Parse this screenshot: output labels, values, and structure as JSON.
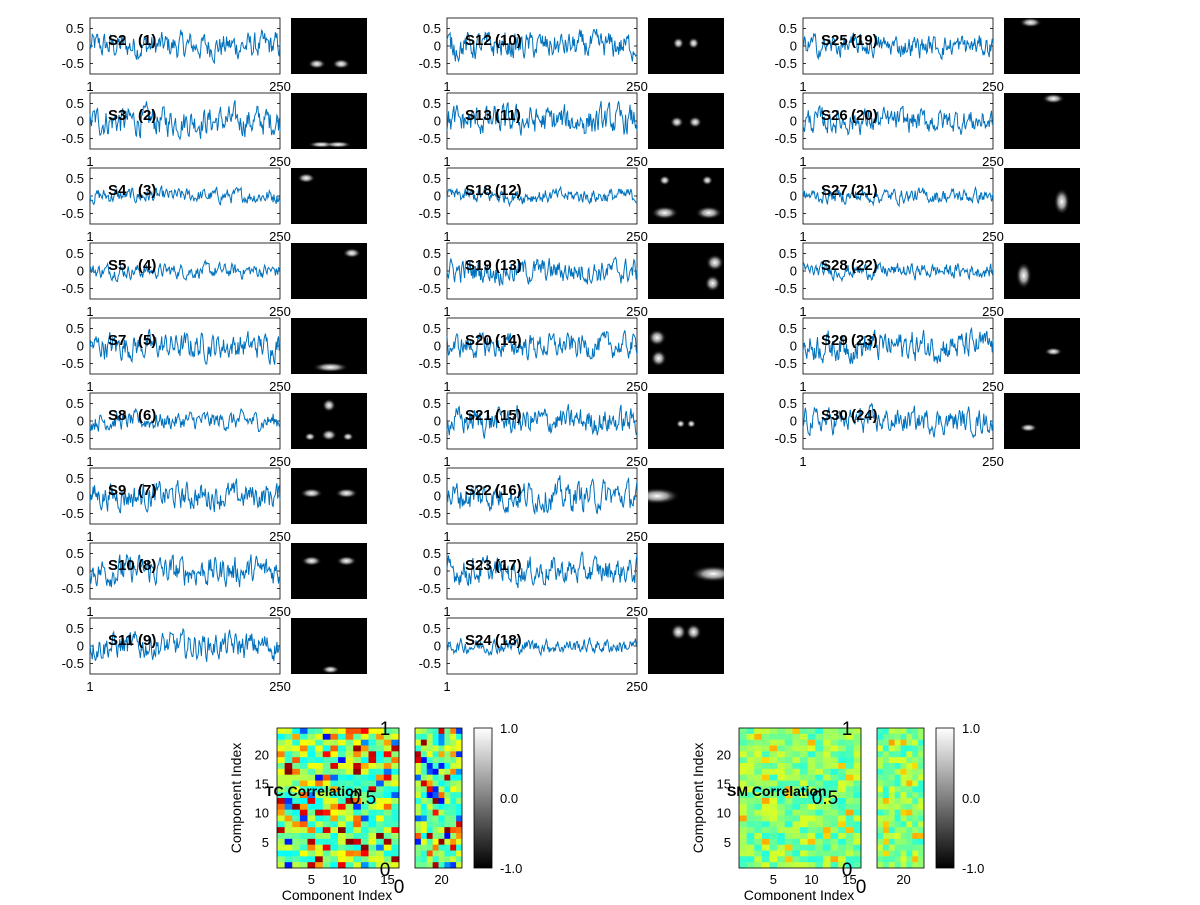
{
  "chart_data": {
    "type": "line",
    "timecourse_panels": {
      "x_range": [
        1,
        250
      ],
      "x_tick_labels": [
        "1",
        "250"
      ],
      "y_tick_labels": [
        "0.5",
        "0",
        "-0.5"
      ],
      "ylim": [
        -0.8,
        0.8
      ],
      "line_color": "#0072bd",
      "spatial_map_colormap": "gray"
    },
    "columns": [
      {
        "label_col": [
          {
            "label": "S2",
            "index": "(1)",
            "amp": 0.22,
            "blobs": [
              {
                "cx": 0.34,
                "cy": 0.82,
                "rx": 0.08,
                "ry": 0.06
              },
              {
                "cx": 0.66,
                "cy": 0.82,
                "rx": 0.08,
                "ry": 0.06
              }
            ]
          },
          {
            "label": "S3",
            "index": "(2)",
            "amp": 0.24,
            "blobs": [
              {
                "cx": 0.4,
                "cy": 0.92,
                "rx": 0.12,
                "ry": 0.04
              },
              {
                "cx": 0.62,
                "cy": 0.92,
                "rx": 0.12,
                "ry": 0.04
              }
            ]
          },
          {
            "label": "S4",
            "index": "(3)",
            "amp": 0.12,
            "blobs": [
              {
                "cx": 0.2,
                "cy": 0.18,
                "rx": 0.08,
                "ry": 0.06
              }
            ]
          },
          {
            "label": "S5",
            "index": "(4)",
            "amp": 0.12,
            "blobs": [
              {
                "cx": 0.8,
                "cy": 0.18,
                "rx": 0.08,
                "ry": 0.06
              }
            ]
          },
          {
            "label": "S7",
            "index": "(5)",
            "amp": 0.22,
            "blobs": [
              {
                "cx": 0.52,
                "cy": 0.88,
                "rx": 0.16,
                "ry": 0.06
              }
            ]
          },
          {
            "label": "S8",
            "index": "(6)",
            "amp": 0.15,
            "blobs": [
              {
                "cx": 0.5,
                "cy": 0.22,
                "rx": 0.06,
                "ry": 0.08
              },
              {
                "cx": 0.25,
                "cy": 0.78,
                "rx": 0.05,
                "ry": 0.05
              },
              {
                "cx": 0.5,
                "cy": 0.75,
                "rx": 0.07,
                "ry": 0.07
              },
              {
                "cx": 0.75,
                "cy": 0.78,
                "rx": 0.05,
                "ry": 0.05
              }
            ]
          },
          {
            "label": "S9",
            "index": "(7)",
            "amp": 0.22,
            "blobs": [
              {
                "cx": 0.27,
                "cy": 0.45,
                "rx": 0.1,
                "ry": 0.06
              },
              {
                "cx": 0.73,
                "cy": 0.45,
                "rx": 0.1,
                "ry": 0.06
              }
            ]
          },
          {
            "label": "S10",
            "index": "(8)",
            "amp": 0.24,
            "blobs": [
              {
                "cx": 0.27,
                "cy": 0.32,
                "rx": 0.09,
                "ry": 0.06
              },
              {
                "cx": 0.73,
                "cy": 0.32,
                "rx": 0.09,
                "ry": 0.06
              }
            ]
          },
          {
            "label": "S11",
            "index": "(9)",
            "amp": 0.22,
            "blobs": [
              {
                "cx": 0.52,
                "cy": 0.92,
                "rx": 0.08,
                "ry": 0.05
              }
            ]
          }
        ]
      },
      {
        "label_col": [
          {
            "label": "S12",
            "index": "(10)",
            "amp": 0.22,
            "blobs": [
              {
                "cx": 0.4,
                "cy": 0.45,
                "rx": 0.05,
                "ry": 0.07
              },
              {
                "cx": 0.6,
                "cy": 0.45,
                "rx": 0.05,
                "ry": 0.07
              }
            ]
          },
          {
            "label": "S13",
            "index": "(11)",
            "amp": 0.24,
            "blobs": [
              {
                "cx": 0.38,
                "cy": 0.52,
                "rx": 0.06,
                "ry": 0.07
              },
              {
                "cx": 0.62,
                "cy": 0.52,
                "rx": 0.06,
                "ry": 0.07
              }
            ]
          },
          {
            "label": "S18",
            "index": "(12)",
            "amp": 0.12,
            "blobs": [
              {
                "cx": 0.22,
                "cy": 0.22,
                "rx": 0.05,
                "ry": 0.06
              },
              {
                "cx": 0.78,
                "cy": 0.22,
                "rx": 0.05,
                "ry": 0.06
              },
              {
                "cx": 0.22,
                "cy": 0.8,
                "rx": 0.12,
                "ry": 0.08
              },
              {
                "cx": 0.8,
                "cy": 0.8,
                "rx": 0.12,
                "ry": 0.08
              }
            ]
          },
          {
            "label": "S19",
            "index": "(13)",
            "amp": 0.2,
            "blobs": [
              {
                "cx": 0.88,
                "cy": 0.35,
                "rx": 0.08,
                "ry": 0.1
              },
              {
                "cx": 0.85,
                "cy": 0.72,
                "rx": 0.07,
                "ry": 0.1
              }
            ]
          },
          {
            "label": "S20",
            "index": "(14)",
            "amp": 0.2,
            "blobs": [
              {
                "cx": 0.12,
                "cy": 0.35,
                "rx": 0.08,
                "ry": 0.1
              },
              {
                "cx": 0.14,
                "cy": 0.72,
                "rx": 0.07,
                "ry": 0.1
              }
            ]
          },
          {
            "label": "S21",
            "index": "(15)",
            "amp": 0.22,
            "blobs": [
              {
                "cx": 0.43,
                "cy": 0.55,
                "rx": 0.04,
                "ry": 0.05
              },
              {
                "cx": 0.57,
                "cy": 0.55,
                "rx": 0.04,
                "ry": 0.05
              }
            ]
          },
          {
            "label": "S22",
            "index": "(16)",
            "amp": 0.24,
            "blobs": [
              {
                "cx": 0.12,
                "cy": 0.5,
                "rx": 0.2,
                "ry": 0.1
              }
            ]
          },
          {
            "label": "S23",
            "index": "(17)",
            "amp": 0.22,
            "blobs": [
              {
                "cx": 0.86,
                "cy": 0.55,
                "rx": 0.2,
                "ry": 0.1
              }
            ]
          },
          {
            "label": "S24",
            "index": "(18)",
            "amp": 0.12,
            "blobs": [
              {
                "cx": 0.4,
                "cy": 0.25,
                "rx": 0.07,
                "ry": 0.1
              },
              {
                "cx": 0.6,
                "cy": 0.25,
                "rx": 0.07,
                "ry": 0.1
              }
            ]
          }
        ]
      },
      {
        "label_col": [
          {
            "label": "S25",
            "index": "(19)",
            "amp": 0.18,
            "blobs": [
              {
                "cx": 0.35,
                "cy": 0.08,
                "rx": 0.1,
                "ry": 0.06
              }
            ]
          },
          {
            "label": "S26",
            "index": "(20)",
            "amp": 0.2,
            "blobs": [
              {
                "cx": 0.65,
                "cy": 0.1,
                "rx": 0.1,
                "ry": 0.06
              }
            ]
          },
          {
            "label": "S27",
            "index": "(21)",
            "amp": 0.12,
            "blobs": [
              {
                "cx": 0.76,
                "cy": 0.6,
                "rx": 0.07,
                "ry": 0.16
              }
            ]
          },
          {
            "label": "S28",
            "index": "(22)",
            "amp": 0.12,
            "blobs": [
              {
                "cx": 0.26,
                "cy": 0.58,
                "rx": 0.07,
                "ry": 0.16
              }
            ]
          },
          {
            "label": "S29",
            "index": "(23)",
            "amp": 0.24,
            "blobs": [
              {
                "cx": 0.65,
                "cy": 0.6,
                "rx": 0.08,
                "ry": 0.05
              }
            ]
          },
          {
            "label": "S30",
            "index": "(24)",
            "amp": 0.2,
            "blobs": [
              {
                "cx": 0.32,
                "cy": 0.62,
                "rx": 0.08,
                "ry": 0.05
              }
            ]
          }
        ]
      }
    ],
    "correlation_panels": [
      {
        "title": "TC Correlation",
        "ylabel": "Component Index",
        "xlabel": "Component Index",
        "y_ticks": [
          "20",
          "15",
          "10",
          "5"
        ],
        "x_ticks": [
          "5",
          "10",
          "15",
          "20"
        ],
        "colorbar_ticks": [
          "1.0",
          "0.0",
          "-1.0"
        ],
        "overlay_axis_ticks": [
          "1",
          "0.5",
          "0",
          "0"
        ],
        "rows": 24,
        "cols_main": 16,
        "cols_side": 8,
        "style": "strong"
      },
      {
        "title": "SM Correlation",
        "ylabel": "Component Index",
        "xlabel": "Component Index",
        "y_ticks": [
          "20",
          "15",
          "10",
          "5"
        ],
        "x_ticks": [
          "5",
          "10",
          "15",
          "20"
        ],
        "colorbar_ticks": [
          "1.0",
          "0.0",
          "-1.0"
        ],
        "overlay_axis_ticks": [
          "1",
          "0.5",
          "0",
          "0"
        ],
        "rows": 24,
        "cols_main": 16,
        "cols_side": 8,
        "style": "weak"
      }
    ]
  }
}
